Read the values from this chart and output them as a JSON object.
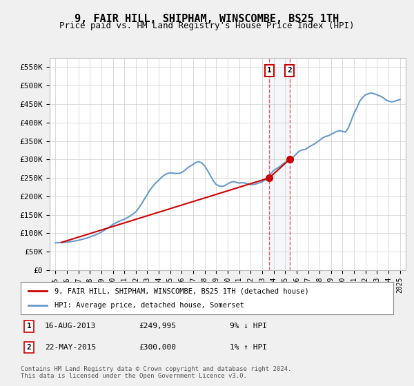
{
  "title": "9, FAIR HILL, SHIPHAM, WINSCOMBE, BS25 1TH",
  "subtitle": "Price paid vs. HM Land Registry's House Price Index (HPI)",
  "title_fontsize": 11,
  "subtitle_fontsize": 9.5,
  "ylabel_ticks": [
    "£0",
    "£50K",
    "£100K",
    "£150K",
    "£200K",
    "£250K",
    "£300K",
    "£350K",
    "£400K",
    "£450K",
    "£500K",
    "£550K"
  ],
  "ytick_vals": [
    0,
    50000,
    100000,
    150000,
    200000,
    250000,
    300000,
    350000,
    400000,
    450000,
    500000,
    550000
  ],
  "ylim": [
    0,
    575000
  ],
  "hpi_years": [
    1995.0,
    1995.25,
    1995.5,
    1995.75,
    1996.0,
    1996.25,
    1996.5,
    1996.75,
    1997.0,
    1997.25,
    1997.5,
    1997.75,
    1998.0,
    1998.25,
    1998.5,
    1998.75,
    1999.0,
    1999.25,
    1999.5,
    1999.75,
    2000.0,
    2000.25,
    2000.5,
    2000.75,
    2001.0,
    2001.25,
    2001.5,
    2001.75,
    2002.0,
    2002.25,
    2002.5,
    2002.75,
    2003.0,
    2003.25,
    2003.5,
    2003.75,
    2004.0,
    2004.25,
    2004.5,
    2004.75,
    2005.0,
    2005.25,
    2005.5,
    2005.75,
    2006.0,
    2006.25,
    2006.5,
    2006.75,
    2007.0,
    2007.25,
    2007.5,
    2007.75,
    2008.0,
    2008.25,
    2008.5,
    2008.75,
    2009.0,
    2009.25,
    2009.5,
    2009.75,
    2010.0,
    2010.25,
    2010.5,
    2010.75,
    2011.0,
    2011.25,
    2011.5,
    2011.75,
    2012.0,
    2012.25,
    2012.5,
    2012.75,
    2013.0,
    2013.25,
    2013.5,
    2013.75,
    2014.0,
    2014.25,
    2014.5,
    2014.75,
    2015.0,
    2015.25,
    2015.5,
    2015.75,
    2016.0,
    2016.25,
    2016.5,
    2016.75,
    2017.0,
    2017.25,
    2017.5,
    2017.75,
    2018.0,
    2018.25,
    2018.5,
    2018.75,
    2019.0,
    2019.25,
    2019.5,
    2019.75,
    2020.0,
    2020.25,
    2020.5,
    2020.75,
    2021.0,
    2021.25,
    2021.5,
    2021.75,
    2022.0,
    2022.25,
    2022.5,
    2022.75,
    2023.0,
    2023.25,
    2023.5,
    2023.75,
    2024.0,
    2024.25,
    2024.5,
    2024.75,
    2025.0
  ],
  "hpi_values": [
    74000,
    74500,
    75000,
    75500,
    76000,
    77000,
    78000,
    79500,
    81000,
    83000,
    85000,
    87000,
    90000,
    93000,
    96000,
    99000,
    103000,
    108000,
    113000,
    118000,
    124000,
    128000,
    132000,
    135000,
    138000,
    142000,
    147000,
    152000,
    158000,
    168000,
    180000,
    193000,
    205000,
    218000,
    228000,
    237000,
    244000,
    252000,
    258000,
    262000,
    264000,
    263000,
    262000,
    262000,
    265000,
    270000,
    277000,
    282000,
    287000,
    292000,
    294000,
    290000,
    282000,
    270000,
    256000,
    242000,
    232000,
    228000,
    227000,
    229000,
    234000,
    238000,
    240000,
    238000,
    236000,
    237000,
    236000,
    234000,
    232000,
    232000,
    234000,
    237000,
    240000,
    244000,
    252000,
    261000,
    270000,
    275000,
    280000,
    286000,
    292000,
    295000,
    300000,
    307000,
    316000,
    323000,
    326000,
    327000,
    332000,
    337000,
    341000,
    346000,
    352000,
    358000,
    362000,
    364000,
    368000,
    372000,
    376000,
    378000,
    376000,
    374000,
    385000,
    405000,
    425000,
    440000,
    458000,
    468000,
    475000,
    478000,
    480000,
    478000,
    475000,
    472000,
    468000,
    462000,
    458000,
    456000,
    457000,
    460000,
    462000
  ],
  "price_paid_years": [
    1995.5,
    2013.62,
    2015.38
  ],
  "price_paid_values": [
    75000,
    249995,
    300000
  ],
  "transaction1_year": 2013.62,
  "transaction1_value": 249995,
  "transaction2_year": 2015.38,
  "transaction2_value": 300000,
  "hpi_color": "#6699cc",
  "price_color": "#cc0000",
  "marker_color": "#cc0000",
  "background_color": "#f0f0f0",
  "plot_bg_color": "#ffffff",
  "grid_color": "#cccccc",
  "legend1_text": "9, FAIR HILL, SHIPHAM, WINSCOMBE, BS25 1TH (detached house)",
  "legend2_text": "HPI: Average price, detached house, Somerset",
  "ann1_num": "1",
  "ann1_date": "16-AUG-2013",
  "ann1_price": "£249,995",
  "ann1_hpi": "9% ↓ HPI",
  "ann2_num": "2",
  "ann2_date": "22-MAY-2015",
  "ann2_price": "£300,000",
  "ann2_hpi": "1% ↑ HPI",
  "footer": "Contains HM Land Registry data © Crown copyright and database right 2024.\nThis data is licensed under the Open Government Licence v3.0.",
  "xtick_years": [
    1995,
    1996,
    1997,
    1998,
    1999,
    2000,
    2001,
    2002,
    2003,
    2004,
    2005,
    2006,
    2007,
    2008,
    2009,
    2010,
    2011,
    2012,
    2013,
    2014,
    2015,
    2016,
    2017,
    2018,
    2019,
    2020,
    2021,
    2022,
    2023,
    2024,
    2025
  ],
  "xlim": [
    1994.5,
    2025.5
  ]
}
